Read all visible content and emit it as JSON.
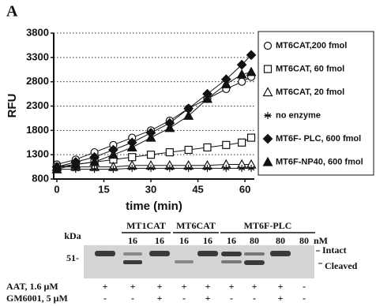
{
  "panel_label": "A",
  "chart_data": {
    "type": "line",
    "y_label": "RFU",
    "x_label": "time (min)",
    "x": [
      0,
      6,
      12,
      18,
      24,
      30,
      36,
      42,
      48,
      54,
      59,
      62
    ],
    "xlim": [
      -1,
      63
    ],
    "xticks": [
      0,
      15,
      30,
      45,
      60
    ],
    "ylim": [
      800,
      3800
    ],
    "yticks": [
      800,
      1300,
      1800,
      2300,
      2800,
      3300,
      3800
    ],
    "grid": true,
    "legend": "right",
    "series": [
      {
        "name": "MT6CAT,200 fmol",
        "color": "#111111",
        "marker": "circle-open",
        "values": [
          1100,
          1200,
          1350,
          1500,
          1650,
          1800,
          2000,
          2250,
          2450,
          2650,
          2800,
          2900
        ]
      },
      {
        "name": "MT6CAT, 60 fmol",
        "color": "#111111",
        "marker": "square-open",
        "values": [
          1050,
          1100,
          1150,
          1200,
          1250,
          1300,
          1350,
          1400,
          1450,
          1500,
          1550,
          1650
        ]
      },
      {
        "name": "MT6CAT, 20 fmol",
        "color": "#111111",
        "marker": "triangle-open",
        "values": [
          1050,
          1050,
          1050,
          1050,
          1080,
          1080,
          1080,
          1080,
          1080,
          1100,
          1100,
          1100
        ]
      },
      {
        "name": "no enzyme",
        "color": "#111111",
        "marker": "asterisk",
        "values": [
          1000,
          1000,
          1000,
          1000,
          1020,
          1020,
          1020,
          1020,
          1020,
          1020,
          1020,
          1020
        ]
      },
      {
        "name": "MT6F- PLC, 600 fmol",
        "color": "#111111",
        "marker": "diamond",
        "values": [
          1050,
          1150,
          1250,
          1400,
          1550,
          1750,
          1950,
          2250,
          2550,
          2850,
          3150,
          3350
        ]
      },
      {
        "name": "MT6F-NP40, 600 fmol",
        "color": "#111111",
        "marker": "triangle",
        "values": [
          1000,
          1100,
          1150,
          1300,
          1450,
          1650,
          1850,
          2100,
          2450,
          2750,
          2950,
          3000
        ]
      }
    ]
  },
  "gel": {
    "mw_unit": "kDa",
    "mw_marker": "51-",
    "groups": [
      "MT1CAT",
      "MT6CAT",
      "MT6F-PLC"
    ],
    "concentrations": [
      "16",
      "16",
      "16",
      "16",
      "16",
      "80",
      "80",
      "80"
    ],
    "conc_unit": "nM",
    "band_labels": [
      "Intact",
      "Cleaved"
    ],
    "rows": [
      {
        "label": "AAT, 1.6 μM",
        "signs": [
          "+",
          "+",
          "+",
          "+",
          "+",
          "+",
          "+",
          "+",
          "-"
        ]
      },
      {
        "label": "GM6001, 5 μM",
        "signs": [
          "-",
          "-",
          "+",
          "-",
          "+",
          "-",
          "-",
          "+",
          "-"
        ]
      }
    ]
  }
}
